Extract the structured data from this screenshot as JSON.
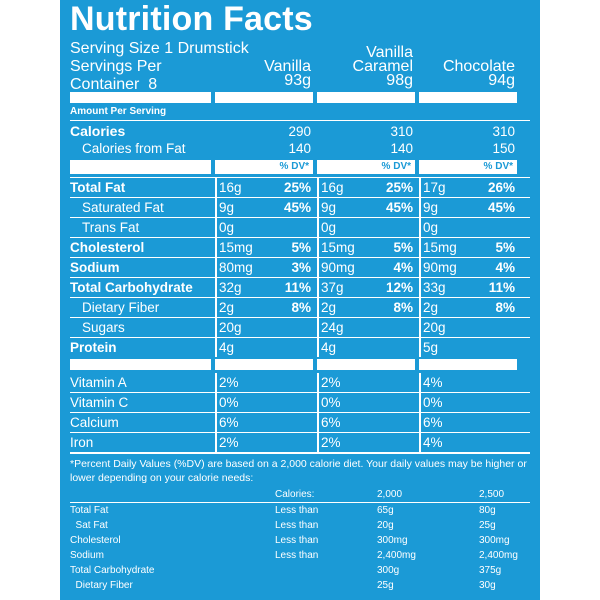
{
  "title": "Nutrition Facts",
  "serving": {
    "line1": "Serving Size 1 Drumstick",
    "line2": "Servings Per",
    "line3": "Container  8"
  },
  "flavors": [
    {
      "name_l1": "",
      "name_l2": "Vanilla",
      "weight": "93g"
    },
    {
      "name_l1": "Vanilla",
      "name_l2": "Caramel",
      "weight": "98g"
    },
    {
      "name_l1": "",
      "name_l2": "Chocolate",
      "weight": "94g"
    }
  ],
  "amount_per_serving": "Amount Per Serving",
  "calories": {
    "label": "Calories",
    "values": [
      "290",
      "310",
      "310"
    ]
  },
  "calories_fat": {
    "label": "Calories from Fat",
    "values": [
      "140",
      "140",
      "150"
    ]
  },
  "dv_header": "% DV*",
  "nutrients": [
    {
      "label": "Total Fat",
      "bold": true,
      "indent": false,
      "cols": [
        [
          "16g",
          "25%"
        ],
        [
          "16g",
          "25%"
        ],
        [
          "17g",
          "26%"
        ]
      ]
    },
    {
      "label": "Saturated Fat",
      "bold": false,
      "indent": true,
      "cols": [
        [
          "9g",
          "45%"
        ],
        [
          "9g",
          "45%"
        ],
        [
          "9g",
          "45%"
        ]
      ]
    },
    {
      "label": "Trans Fat",
      "bold": false,
      "indent": true,
      "cols": [
        [
          "0g",
          ""
        ],
        [
          "0g",
          ""
        ],
        [
          "0g",
          ""
        ]
      ]
    },
    {
      "label": "Cholesterol",
      "bold": true,
      "indent": false,
      "cols": [
        [
          "15mg",
          "5%"
        ],
        [
          "15mg",
          "5%"
        ],
        [
          "15mg",
          "5%"
        ]
      ]
    },
    {
      "label": "Sodium",
      "bold": true,
      "indent": false,
      "cols": [
        [
          "80mg",
          "3%"
        ],
        [
          "90mg",
          "4%"
        ],
        [
          "90mg",
          "4%"
        ]
      ]
    },
    {
      "label": "Total Carbohydrate",
      "bold": true,
      "indent": false,
      "cols": [
        [
          "32g",
          "11%"
        ],
        [
          "37g",
          "12%"
        ],
        [
          "33g",
          "11%"
        ]
      ]
    },
    {
      "label": "Dietary Fiber",
      "bold": false,
      "indent": true,
      "cols": [
        [
          "2g",
          "8%"
        ],
        [
          "2g",
          "8%"
        ],
        [
          "2g",
          "8%"
        ]
      ]
    },
    {
      "label": "Sugars",
      "bold": false,
      "indent": true,
      "cols": [
        [
          "20g",
          ""
        ],
        [
          "24g",
          ""
        ],
        [
          "20g",
          ""
        ]
      ]
    },
    {
      "label": "Protein",
      "bold": true,
      "indent": false,
      "cols": [
        [
          "4g",
          ""
        ],
        [
          "4g",
          ""
        ],
        [
          "5g",
          ""
        ]
      ]
    }
  ],
  "vitamins": [
    {
      "label": "Vitamin A",
      "cols": [
        "2%",
        "2%",
        "4%"
      ]
    },
    {
      "label": "Vitamin C",
      "cols": [
        "0%",
        "0%",
        "0%"
      ]
    },
    {
      "label": "Calcium",
      "cols": [
        "6%",
        "6%",
        "6%"
      ]
    },
    {
      "label": "Iron",
      "cols": [
        "2%",
        "2%",
        "4%"
      ]
    }
  ],
  "footnote": "*Percent Daily Values (%DV) are based on a 2,000 calorie diet. Your daily values may be higher or lower depending on your calorie needs:",
  "footer_table": {
    "header": [
      "",
      "Calories:",
      "2,000",
      "2,500"
    ],
    "rows": [
      [
        "Total Fat",
        "Less than",
        "65g",
        "80g"
      ],
      [
        "  Sat Fat",
        "Less than",
        "20g",
        "25g"
      ],
      [
        "Cholesterol",
        "Less than",
        "300mg",
        "300mg"
      ],
      [
        "Sodium",
        "Less than",
        "2,400mg",
        "2,400mg"
      ],
      [
        "Total Carbohydrate",
        "",
        "300g",
        "375g"
      ],
      [
        "  Dietary Fiber",
        "",
        "25g",
        "30g"
      ]
    ]
  },
  "colors": {
    "background": "#1b9ad6",
    "text": "#ffffff"
  }
}
